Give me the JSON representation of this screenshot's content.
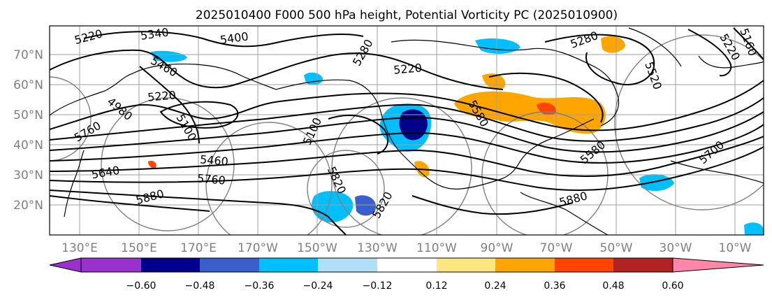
{
  "title": "2025010400 F000 500 hPa height, Potential Vorticity PC (2025010900)",
  "lat_labels": [
    "70°N",
    "60°N",
    "50°N",
    "40°N",
    "30°N",
    "20°N"
  ],
  "lon_labels": [
    "130°E",
    "150°E",
    "170°E",
    "170°W",
    "150°W",
    "130°W",
    "110°W",
    "90°W",
    "70°W",
    "50°W",
    "30°W",
    "10°W"
  ],
  "contour_labels": [
    "5220",
    "5340",
    "5400",
    "5460",
    "5220",
    "5100",
    "4980",
    "5760",
    "5640",
    "5460",
    "5760",
    "5880",
    "5100",
    "5820",
    "5820",
    "5280",
    "5220",
    "5160",
    "5220",
    "5280",
    "5580",
    "5880",
    "5700",
    "5520",
    "5580"
  ],
  "colorbar": {
    "ticks": [
      "−0.60",
      "−0.48",
      "−0.36",
      "−0.24",
      "−0.12",
      "0.12",
      "0.24",
      "0.36",
      "0.48",
      "0.60"
    ],
    "colors": [
      "#9932cc",
      "#00008b",
      "#3a5fcd",
      "#00bfff",
      "#b0e0f8",
      "#ffffff",
      "#ffe680",
      "#ffa500",
      "#ff4500",
      "#b22222",
      "#ff88aa"
    ]
  }
}
